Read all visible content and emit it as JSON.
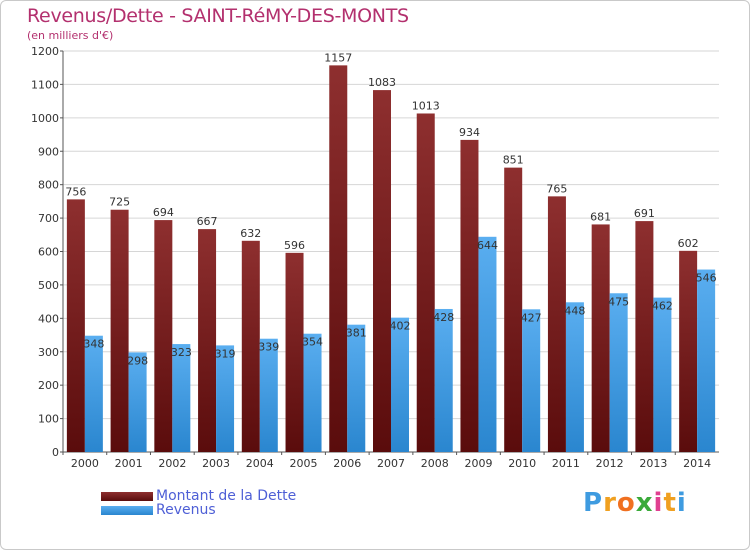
{
  "header": {
    "title": "Revenus/Dette - SAINT-RéMY-DES-MONTS",
    "subtitle": "(en milliers d'€)"
  },
  "colors": {
    "title": "#b3306e",
    "debt_top": "#8e2f2f",
    "debt_bottom": "#5a0c0c",
    "revenue_top": "#5aaef0",
    "revenue_bottom": "#2a86cf",
    "legend_text": "#4e5fd6"
  },
  "chart_data": {
    "type": "bar",
    "title": "Revenus/Dette - SAINT-RéMY-DES-MONTS",
    "ylabel": "(en milliers d'€)",
    "xlabel": "",
    "categories": [
      "2000",
      "2001",
      "2002",
      "2003",
      "2004",
      "2005",
      "2006",
      "2007",
      "2008",
      "2009",
      "2010",
      "2011",
      "2012",
      "2013",
      "2014"
    ],
    "series": [
      {
        "name": "Montant de la Dette",
        "values": [
          756,
          725,
          694,
          667,
          632,
          596,
          1157,
          1083,
          1013,
          934,
          851,
          765,
          681,
          691,
          602
        ]
      },
      {
        "name": "Revenus",
        "values": [
          348,
          298,
          323,
          319,
          339,
          354,
          381,
          402,
          428,
          644,
          427,
          448,
          475,
          462,
          546
        ]
      }
    ],
    "ylim": [
      0,
      1200
    ],
    "yticks": [
      0,
      100,
      200,
      300,
      400,
      500,
      600,
      700,
      800,
      900,
      1000,
      1100,
      1200
    ],
    "grid": true,
    "legend_position": "bottom-left"
  },
  "legend": {
    "items": [
      {
        "label": "Montant de la Dette",
        "icon": "debt-swatch"
      },
      {
        "label": "Revenus",
        "icon": "revenue-swatch"
      }
    ]
  },
  "logo": {
    "text": "Proxiti",
    "letters": [
      "P",
      "r",
      "o",
      "x",
      "i",
      "t",
      "i"
    ],
    "letter_colors": [
      "#3e9be0",
      "#f0a020",
      "#f07020",
      "#3aaa3a",
      "#e04090",
      "#f0a020",
      "#3e9be0"
    ]
  }
}
